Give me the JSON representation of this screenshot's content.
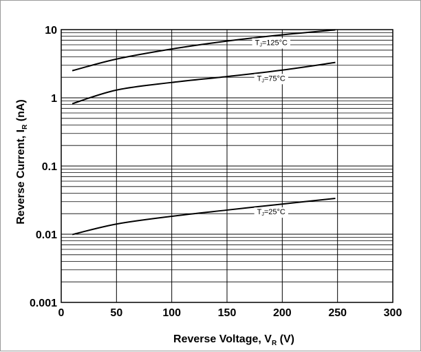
{
  "chart_data": {
    "type": "line",
    "xlabel": {
      "main": "Reverse  Voltage, V",
      "sub": "R",
      "unit": " (V)"
    },
    "ylabel": {
      "main": "Reverse Current, I",
      "sub": "R",
      "unit": " (nA)"
    },
    "xlim": [
      0,
      300
    ],
    "ylim": [
      0.001,
      10
    ],
    "yscale": "log",
    "grid": true,
    "x_ticks": [
      0,
      50,
      100,
      150,
      200,
      250,
      300
    ],
    "x_tick_labels": [
      "0",
      "50",
      "100",
      "150",
      "200",
      "250",
      "300"
    ],
    "y_ticks": [
      0.001,
      0.01,
      0.1,
      1,
      10
    ],
    "y_tick_labels": [
      "0.001",
      "0.01",
      "0.1",
      "1",
      "10"
    ],
    "series": [
      {
        "label": {
          "main": "T",
          "sub": "J",
          "rest": "=125°C"
        },
        "points": [
          [
            10,
            2.5
          ],
          [
            50,
            3.7
          ],
          [
            100,
            5.2
          ],
          [
            150,
            6.8
          ],
          [
            200,
            8.4
          ],
          [
            248,
            9.9
          ]
        ]
      },
      {
        "label": {
          "main": "T",
          "sub": "J",
          "rest": "=75°C"
        },
        "points": [
          [
            10,
            0.82
          ],
          [
            50,
            1.3
          ],
          [
            100,
            1.68
          ],
          [
            150,
            2.05
          ],
          [
            200,
            2.55
          ],
          [
            248,
            3.3
          ]
        ]
      },
      {
        "label": {
          "main": "T",
          "sub": "J",
          "rest": "=25°C"
        },
        "points": [
          [
            10,
            0.0099
          ],
          [
            50,
            0.0141
          ],
          [
            100,
            0.0183
          ],
          [
            150,
            0.0226
          ],
          [
            200,
            0.0277
          ],
          [
            248,
            0.0335
          ]
        ]
      }
    ]
  }
}
